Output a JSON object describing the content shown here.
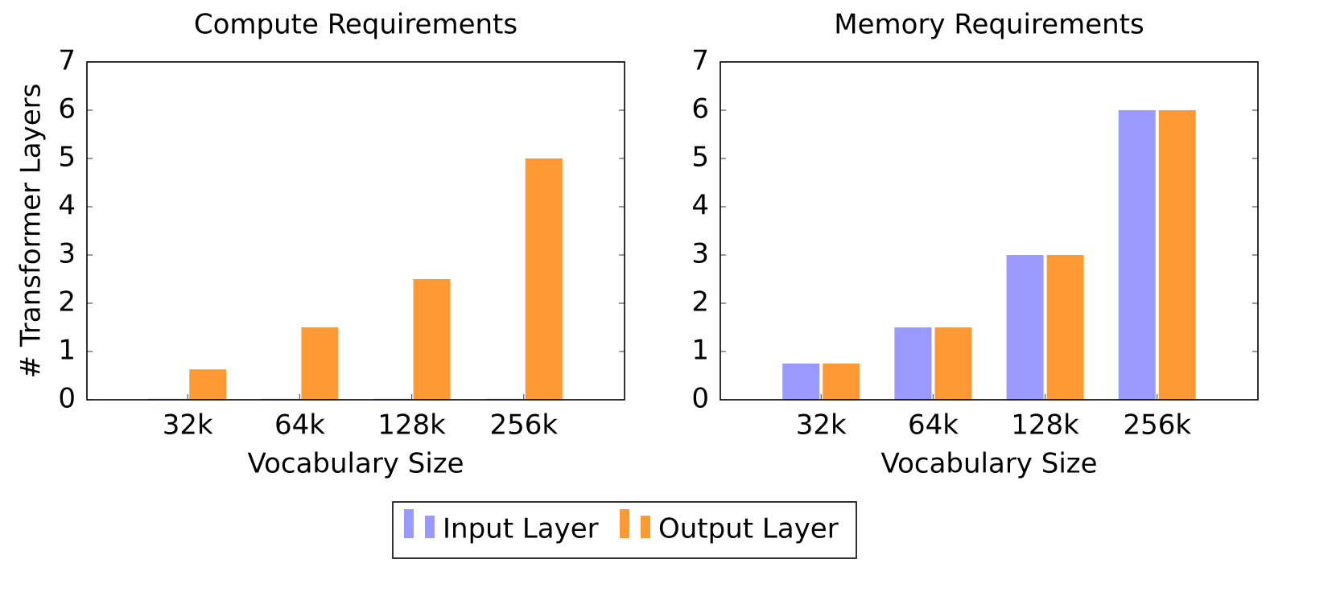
{
  "chart_data": [
    {
      "type": "bar",
      "title": "Compute Requirements",
      "xlabel": "Vocabulary Size",
      "ylabel": "# Transformer Layers",
      "categories": [
        "32k",
        "64k",
        "128k",
        "256k"
      ],
      "series": [
        {
          "name": "Input Layer",
          "color": "#9999ff",
          "values": [
            0.02,
            0.02,
            0.02,
            0.02
          ]
        },
        {
          "name": "Output Layer",
          "color": "#ff9933",
          "values": [
            0.63,
            1.5,
            2.5,
            5.0
          ]
        }
      ],
      "ylim": [
        0,
        7
      ],
      "yticks": [
        0,
        1,
        2,
        3,
        4,
        5,
        6,
        7
      ]
    },
    {
      "type": "bar",
      "title": "Memory Requirements",
      "xlabel": "Vocabulary Size",
      "categories": [
        "32k",
        "64k",
        "128k",
        "256k"
      ],
      "series": [
        {
          "color": "#9999ff",
          "values": [
            0.75,
            1.5,
            3.0,
            6.0
          ]
        },
        {
          "color": "#ff9933",
          "values": [
            0.75,
            1.5,
            3.0,
            6.0
          ]
        }
      ],
      "ylim": [
        0,
        7
      ],
      "yticks": [
        0,
        1,
        2,
        3,
        4,
        5,
        6,
        7
      ]
    }
  ]
}
